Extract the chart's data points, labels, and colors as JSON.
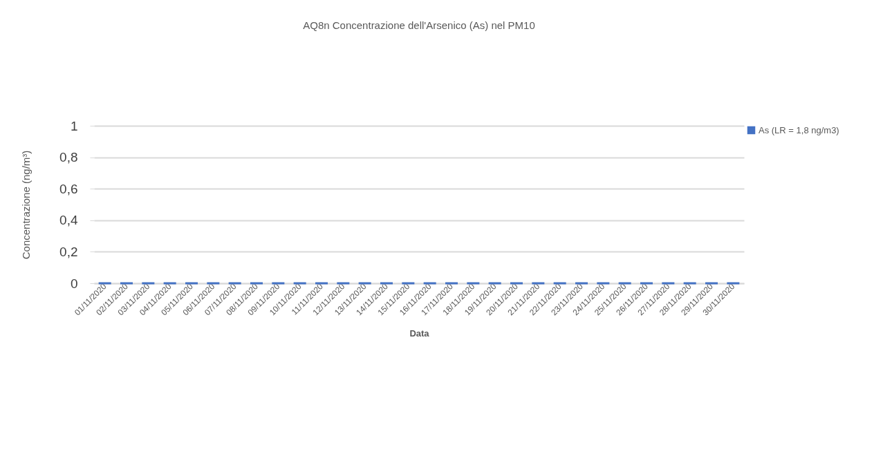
{
  "chart_data": {
    "type": "bar",
    "title": "AQ8n Concentrazione dell'Arsenico (As) nel PM10",
    "xlabel": "Data",
    "ylabel": "Concentrazione (ng/m³)",
    "categories": [
      "01/11/2020",
      "02/11/2020",
      "03/11/2020",
      "04/11/2020",
      "05/11/2020",
      "06/11/2020",
      "07/11/2020",
      "08/11/2020",
      "09/11/2020",
      "10/11/2020",
      "11/11/2020",
      "12/11/2020",
      "13/11/2020",
      "14/11/2020",
      "15/11/2020",
      "16/11/2020",
      "17/11/2020",
      "18/11/2020",
      "19/11/2020",
      "20/11/2020",
      "21/11/2020",
      "22/11/2020",
      "23/11/2020",
      "24/11/2020",
      "25/11/2020",
      "26/11/2020",
      "27/11/2020",
      "28/11/2020",
      "29/11/2020",
      "30/11/2020"
    ],
    "series": [
      {
        "name": "As (LR = 1,8 ng/m3)",
        "color": "#4472c4",
        "values": [
          0,
          0,
          0,
          0,
          0,
          0,
          0,
          0,
          0,
          0,
          0,
          0,
          0,
          0,
          0,
          0,
          0,
          0,
          0,
          0,
          0,
          0,
          0,
          0,
          0,
          0,
          0,
          0,
          0,
          0
        ]
      }
    ],
    "ylim": [
      0,
      1
    ],
    "yticks": [
      {
        "value": 0,
        "label": "0"
      },
      {
        "value": 0.2,
        "label": "0,2"
      },
      {
        "value": 0.4,
        "label": "0,4"
      },
      {
        "value": 0.6,
        "label": "0,6"
      },
      {
        "value": 0.8,
        "label": "0,8"
      },
      {
        "value": 1,
        "label": "1"
      }
    ],
    "grid": "y",
    "legend": "top right"
  }
}
